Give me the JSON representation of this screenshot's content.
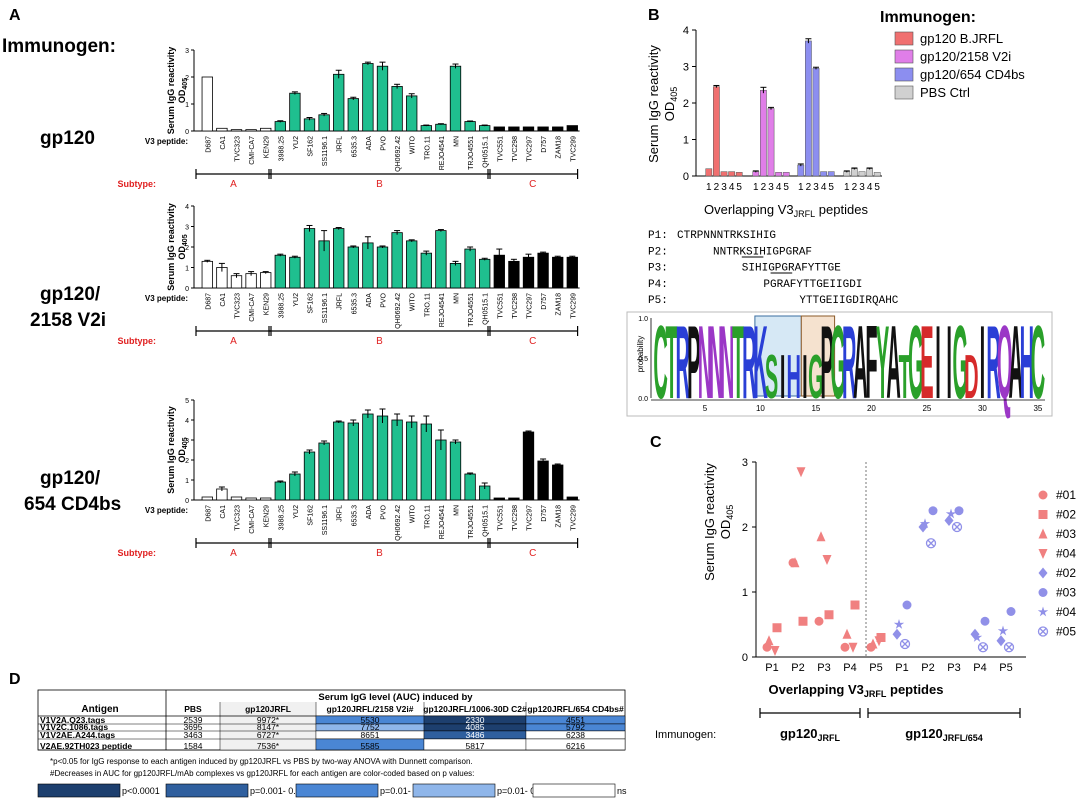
{
  "panel_labels": {
    "a": "A",
    "b": "B",
    "c": "C",
    "d": "D"
  },
  "immunogen_heading": "Immunogen:",
  "v3_peptides": [
    "D687",
    "CA1",
    "TVC323",
    "CMI-CA7",
    "KEN29",
    "3988.25",
    "YU2",
    "SF162",
    "SS1196.1",
    "JRFL",
    "6535.3",
    "ADA",
    "PVO",
    "QH0692.42",
    "WITO",
    "TRO.11",
    "REJO4541",
    "MN",
    "TRJO4551",
    "QH0515.1",
    "TVC551",
    "TVC298",
    "TVC297",
    "D757",
    "ZAM18",
    "TVC299"
  ],
  "subtypes": [
    {
      "label": "A",
      "start": 0,
      "end": 4
    },
    {
      "label": "B",
      "start": 5,
      "end": 19
    },
    {
      "label": "C",
      "start": 20,
      "end": 25
    }
  ],
  "panel_a": {
    "x_row_label": "V3 peptide:",
    "subtype_row_label": "Subtype:",
    "ylabel_1": "Serum IgG reactivity",
    "ylabel_2": "OD",
    "ylabel_sub": "405"
  },
  "chart_data": [
    {
      "type": "bar",
      "panel": "A",
      "immunogen": "gp120",
      "categories": [
        "D687",
        "CA1",
        "TVC323",
        "CMI-CA7",
        "KEN29",
        "3988.25",
        "YU2",
        "SF162",
        "SS1196.1",
        "JRFL",
        "6535.3",
        "ADA",
        "PVO",
        "QH0692.42",
        "WITO",
        "TRO.11",
        "REJO4541",
        "MN",
        "TRJO4551",
        "QH0515.1",
        "TVC551",
        "TVC298",
        "TVC297",
        "D757",
        "ZAM18",
        "TVC299"
      ],
      "values": [
        2.0,
        0.1,
        0.05,
        0.05,
        0.1,
        0.35,
        1.4,
        0.45,
        0.6,
        2.1,
        1.2,
        2.5,
        2.4,
        1.65,
        1.3,
        0.2,
        0.25,
        2.4,
        0.35,
        0.2,
        0.15,
        0.15,
        0.15,
        0.15,
        0.15,
        0.2
      ],
      "errors": [
        0,
        0,
        0,
        0,
        0,
        0.03,
        0.05,
        0.05,
        0.05,
        0.15,
        0.05,
        0.05,
        0.15,
        0.08,
        0.08,
        0.02,
        0.02,
        0.08,
        0.02,
        0.02,
        0,
        0,
        0,
        0,
        0,
        0
      ],
      "ylim": [
        0,
        3
      ],
      "yticks": [
        0,
        1,
        2,
        3
      ]
    },
    {
      "type": "bar",
      "panel": "A",
      "immunogen": "gp120/2158 V2i",
      "categories": [
        "D687",
        "CA1",
        "TVC323",
        "CMI-CA7",
        "KEN29",
        "3988.25",
        "YU2",
        "SF162",
        "SS1196.1",
        "JRFL",
        "6535.3",
        "ADA",
        "PVO",
        "QH0692.42",
        "WITO",
        "TRO.11",
        "REJO4541",
        "MN",
        "TRJO4551",
        "QH0515.1",
        "TVC551",
        "TVC298",
        "TVC297",
        "D757",
        "ZAM18",
        "TVC299"
      ],
      "values": [
        1.3,
        1.0,
        0.6,
        0.7,
        0.75,
        1.6,
        1.5,
        2.9,
        2.3,
        2.9,
        2.0,
        2.2,
        2.0,
        2.7,
        2.3,
        1.7,
        2.8,
        1.2,
        1.9,
        1.4,
        1.6,
        1.3,
        1.5,
        1.7,
        1.5,
        1.5
      ],
      "errors": [
        0.05,
        0.2,
        0.1,
        0.1,
        0.05,
        0.05,
        0.05,
        0.15,
        0.5,
        0.05,
        0.05,
        0.3,
        0.05,
        0.1,
        0.05,
        0.1,
        0.05,
        0.1,
        0.1,
        0.05,
        0.3,
        0.1,
        0.15,
        0.05,
        0.05,
        0.05
      ],
      "ylim": [
        0,
        4
      ],
      "yticks": [
        0,
        1,
        2,
        3,
        4
      ]
    },
    {
      "type": "bar",
      "panel": "A",
      "immunogen": "gp120/654 CD4bs",
      "categories": [
        "D687",
        "CA1",
        "TVC323",
        "CMI-CA7",
        "KEN29",
        "3988.25",
        "YU2",
        "SF162",
        "SS1196.1",
        "JRFL",
        "6535.3",
        "ADA",
        "PVO",
        "QH0692.42",
        "WITO",
        "TRO.11",
        "REJO4541",
        "MN",
        "TRJO4551",
        "QH0515.1",
        "TVC551",
        "TVC298",
        "TVC297",
        "D757",
        "ZAM18",
        "TVC299"
      ],
      "values": [
        0.15,
        0.55,
        0.15,
        0.1,
        0.1,
        0.9,
        1.3,
        2.4,
        2.85,
        3.9,
        3.85,
        4.3,
        4.2,
        4.0,
        3.9,
        3.8,
        3.0,
        2.9,
        1.3,
        0.7,
        0.1,
        0.1,
        3.4,
        1.95,
        1.75,
        0.15
      ],
      "errors": [
        0,
        0.1,
        0,
        0,
        0,
        0.05,
        0.1,
        0.1,
        0.1,
        0.05,
        0.15,
        0.2,
        0.35,
        0.3,
        0.3,
        0.4,
        0.5,
        0.1,
        0.05,
        0.15,
        0,
        0,
        0.05,
        0.1,
        0.05,
        0
      ],
      "ylim": [
        0,
        5
      ],
      "yticks": [
        0,
        1,
        2,
        3,
        4,
        5
      ]
    },
    {
      "type": "bar",
      "panel": "B",
      "title": "Immunogen:",
      "xlabel": "Overlapping V3JRFL peptides",
      "ylabel": "Serum IgG reactivity OD405",
      "categories": [
        "1",
        "2",
        "3",
        "4",
        "5"
      ],
      "series": [
        {
          "name": "gp120 B.JRFL",
          "color": "#f07070",
          "values": [
            0.2,
            2.45,
            0.12,
            0.12,
            0.1
          ],
          "errors": [
            0,
            0.03,
            0,
            0,
            0
          ]
        },
        {
          "name": "gp120/2158 V2i",
          "color": "#e07ee8",
          "values": [
            0.12,
            2.35,
            1.85,
            0.1,
            0.1
          ],
          "errors": [
            0.02,
            0.08,
            0.03,
            0,
            0
          ]
        },
        {
          "name": "gp120/654 CD4bs",
          "color": "#8c8ef0",
          "values": [
            0.3,
            3.7,
            2.95,
            0.12,
            0.12
          ],
          "errors": [
            0.03,
            0.06,
            0.03,
            0,
            0
          ]
        },
        {
          "name": "PBS Ctrl",
          "color": "#d0d0d0",
          "values": [
            0.12,
            0.2,
            0.12,
            0.2,
            0.1
          ],
          "errors": [
            0.02,
            0.02,
            0,
            0.02,
            0
          ]
        }
      ],
      "ylim": [
        0,
        4
      ],
      "yticks": [
        0,
        1,
        2,
        3,
        4
      ]
    },
    {
      "type": "scatter",
      "panel": "C",
      "xlabel": "Overlapping V3JRFL peptides",
      "ylabel": "Serum IgG reactivity OD 405",
      "categories": [
        "P1",
        "P2",
        "P3",
        "P4",
        "P5",
        "P1",
        "P2",
        "P3",
        "P4",
        "P5"
      ],
      "ylim": [
        0,
        3
      ],
      "yticks": [
        0,
        1,
        2,
        3
      ],
      "groups": [
        {
          "immunogen": "gp120JRFL",
          "color": "#f08080",
          "series": [
            {
              "name": "#01",
              "marker": "circle",
              "values": [
                0.15,
                1.45,
                0.55,
                0.15,
                0.15
              ]
            },
            {
              "name": "#02",
              "marker": "square",
              "values": [
                0.45,
                0.55,
                0.65,
                0.8,
                0.3
              ]
            },
            {
              "name": "#03",
              "marker": "triangle",
              "values": [
                0.25,
                1.45,
                1.85,
                0.35,
                0.2
              ]
            },
            {
              "name": "#04",
              "marker": "triangle-down",
              "values": [
                0.1,
                2.85,
                1.5,
                0.15,
                0.25
              ]
            }
          ]
        },
        {
          "immunogen": "gp120JRFL/654",
          "color": "#9090e8",
          "series": [
            {
              "name": "#02",
              "marker": "diamond",
              "values": [
                0.35,
                2.0,
                2.1,
                0.35,
                0.25
              ]
            },
            {
              "name": "#03",
              "marker": "circle",
              "values": [
                0.8,
                2.25,
                2.25,
                0.55,
                0.7
              ]
            },
            {
              "name": "#04",
              "marker": "star",
              "values": [
                0.5,
                2.05,
                2.2,
                0.3,
                0.4
              ]
            },
            {
              "name": "#05",
              "marker": "circle-x",
              "values": [
                0.2,
                1.75,
                2.0,
                0.15,
                0.15
              ]
            }
          ]
        }
      ]
    },
    {
      "type": "table",
      "panel": "D",
      "corner_header": "Antigen",
      "group_header": "Serum IgG level (AUC) induced by",
      "columns": [
        "PBS",
        "gp120JRFL",
        "gp120JRFL/2158 V2i#",
        "gp120JRFL/1006-30D C2#",
        "gp120JRFL/654 CD4bs#"
      ],
      "rows": [
        {
          "antigen": "V1V2A.Q23.tags",
          "values": [
            "2539",
            "9972*",
            "5530",
            "2330",
            "4551"
          ]
        },
        {
          "antigen": "V1V2C.1086.tags",
          "values": [
            "3695",
            "8147*",
            "7752",
            "4085",
            "5792"
          ]
        },
        {
          "antigen": "V1V2AE.A244.tags",
          "values": [
            "3463",
            "6727*",
            "8651",
            "3486",
            "6238"
          ]
        },
        {
          "antigen": "V2AE.92TH023 peptide",
          "values": [
            "1584",
            "7536*",
            "5585",
            "5817",
            "6216"
          ]
        }
      ]
    }
  ],
  "panel_b": {
    "legend_title": "Immunogen:",
    "legend": [
      "gp120 B.JRFL",
      "gp120/2158 V2i",
      "gp120/654 CD4bs",
      "PBS Ctrl"
    ],
    "ylabel_1": "Serum IgG reactivity",
    "ylabel_2": "OD",
    "ylabel_sub": "405",
    "xlabel_main": "Overlapping V3",
    "xlabel_sub": "JRFL",
    "xlabel_end": " peptides",
    "peptides": [
      {
        "label": "P1:",
        "indent": 0,
        "seq": "CTRPNNNTRKSIHIG"
      },
      {
        "label": "P2:",
        "indent": 5,
        "seq": "NNTRKSIHIGPGRAF"
      },
      {
        "label": "P3:",
        "indent": 9,
        "seq": "SIHIGPGRAFYTTGE"
      },
      {
        "label": "P4:",
        "indent": 12,
        "seq": "PGRAFYTTGEIIGDI"
      },
      {
        "label": "P5:",
        "indent": 17,
        "seq": "YTTGEIIGDIRQAHC"
      }
    ],
    "logo_consensus": "CTRPNNNTRKSIHIGPGRAFYATGEIIGDIRQAHC",
    "logo_ylabel": "probability",
    "logo_yticks": [
      "0.0",
      "0.5",
      "1.0"
    ],
    "logo_xticks": [
      "5",
      "10",
      "15",
      "20",
      "25",
      "30",
      "35"
    ]
  },
  "panel_c": {
    "ylabel_1": "Serum IgG reactivity",
    "ylabel_2": "OD",
    "ylabel_sub": "405",
    "xlabel_main": "Overlapping V3",
    "xlabel_sub": "JRFL",
    "xlabel_end": " peptides",
    "immunogen_label": "Immunogen:",
    "group_labels": [
      {
        "main": "gp120",
        "sub": "JRFL"
      },
      {
        "main": "gp120",
        "sub": "JRFL/654"
      }
    ],
    "legend": [
      "#01",
      "#02",
      "#03",
      "#04",
      "#02",
      "#03",
      "#04",
      "#05"
    ]
  },
  "panel_d": {
    "footnote_1": "*p<0.05 for IgG response to each antigen induced by gp120JRFL vs PBS by two-way ANOVA with Dunnett comparison.",
    "footnote_2": "#Decreases in AUC for gp120JRFL/mAb complexes vs gp120JRFL for each antigen are color-coded based on p values:",
    "pvalue_legend": [
      "p<0.0001",
      "p=0.001- 0.0001",
      "p=0.01- 0.001",
      "p=0.01- 0.05",
      "ns"
    ]
  },
  "colors": {
    "green": "#1fbf8f",
    "red_label": "#e02020",
    "sig1": "#1d3f6e",
    "sig2": "#2f5f9e",
    "sig3": "#4a86d4",
    "sig4": "#8fb6ea",
    "ns": "#ffffff"
  }
}
